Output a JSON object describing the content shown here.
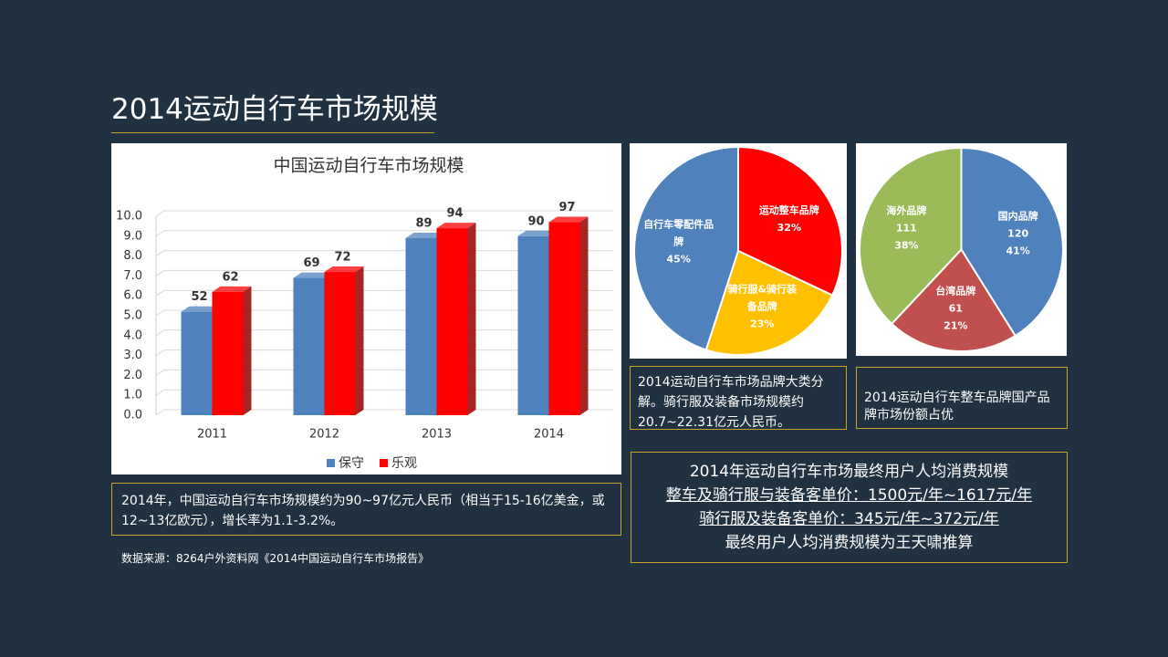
{
  "title": "2014运动自行车市场规模",
  "chart_data": [
    {
      "type": "bar",
      "title": "中国运动自行车市场规模",
      "categories": [
        "2011",
        "2012",
        "2013",
        "2014"
      ],
      "series": [
        {
          "name": "保守",
          "color": "#4f81bd",
          "values": [
            52,
            69,
            89,
            90
          ]
        },
        {
          "name": "乐观",
          "color": "#ff0000",
          "values": [
            62,
            72,
            94,
            97
          ]
        }
      ],
      "ylim": [
        0,
        100
      ],
      "yticks": [
        {
          "value": 0,
          "label": "0.0"
        },
        {
          "value": 10,
          "label": "1.0"
        },
        {
          "value": 20,
          "label": "2.0"
        },
        {
          "value": 30,
          "label": "3.0"
        },
        {
          "value": 40,
          "label": "4.0"
        },
        {
          "value": 50,
          "label": "5.0"
        },
        {
          "value": 60,
          "label": "6.0"
        },
        {
          "value": 70,
          "label": "7.0"
        },
        {
          "value": 80,
          "label": "8.0"
        },
        {
          "value": 90,
          "label": "9.0"
        },
        {
          "value": 100,
          "label": "10.0"
        }
      ],
      "grid": true,
      "legend": "bottom"
    },
    {
      "type": "pie",
      "categories": [
        "运动整车品牌",
        "骑行服&骑行装备品牌",
        "自行车零配件品牌"
      ],
      "values": [
        32,
        23,
        45
      ],
      "value_labels": [
        "32%",
        "23%",
        "45%"
      ],
      "colors": [
        "#ff0000",
        "#ffc000",
        "#4f81bd"
      ]
    },
    {
      "type": "pie",
      "categories": [
        "国内品牌",
        "台湾品牌",
        "海外品牌"
      ],
      "values": [
        120,
        61,
        111
      ],
      "shares": [
        "41%",
        "21%",
        "38%"
      ],
      "colors": [
        "#4f81bd",
        "#c0504d",
        "#9bbb59"
      ]
    }
  ],
  "notes": {
    "market": "2014年，中国运动自行车市场规模约为90~97亿元人民币（相当于15-16亿美金，或12~13亿欧元），增长率为1.1-3.2%。",
    "source": "数据来源：8264户外资料网《2014中国运动自行车市场报告》",
    "brand_category": "2014运动自行车市场品牌大类分解。骑行服及装备市场规模约20.7~22.31亿元人民币。",
    "brand_origin": "2014运动自行车整车品牌国产品牌市场份额占优"
  },
  "summary": [
    "2014年运动自行车市场最终用户人均消费规模",
    "整车及骑行服与装备客单价：1500元/年~1617元/年",
    "骑行服及装备客单价：345元/年~372元/年",
    "最终用户人均消费规模为王天啸推算"
  ]
}
